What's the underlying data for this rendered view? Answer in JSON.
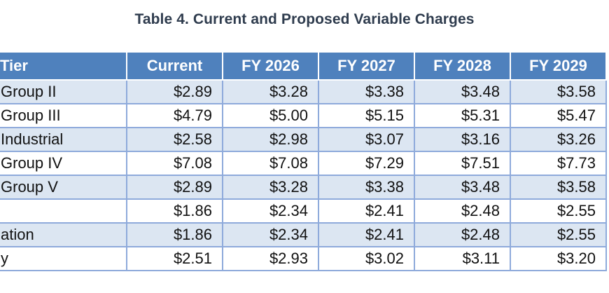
{
  "caption": "Table 4. Current and Proposed Variable Charges",
  "table": {
    "headers": [
      "Tier",
      "Current",
      "FY 2026",
      "FY 2027",
      "FY 2028",
      "FY 2029"
    ],
    "rows": [
      [
        "Group II",
        "$2.89",
        "$3.28",
        "$3.38",
        "$3.48",
        "$3.58"
      ],
      [
        "Group III",
        "$4.79",
        "$5.00",
        "$5.15",
        "$5.31",
        "$5.47"
      ],
      [
        "Industrial",
        "$2.58",
        "$2.98",
        "$3.07",
        "$3.16",
        "$3.26"
      ],
      [
        "Group IV",
        "$7.08",
        "$7.08",
        "$7.29",
        "$7.51",
        "$7.73"
      ],
      [
        "Group V",
        "$2.89",
        "$3.28",
        "$3.38",
        "$3.48",
        "$3.58"
      ],
      [
        "",
        "$1.86",
        "$2.34",
        "$2.41",
        "$2.48",
        "$2.55"
      ],
      [
        "ation",
        "$1.86",
        "$2.34",
        "$2.41",
        "$2.48",
        "$2.55"
      ],
      [
        "y",
        "$2.51",
        "$2.93",
        "$3.02",
        "$3.11",
        "$3.20"
      ]
    ]
  }
}
